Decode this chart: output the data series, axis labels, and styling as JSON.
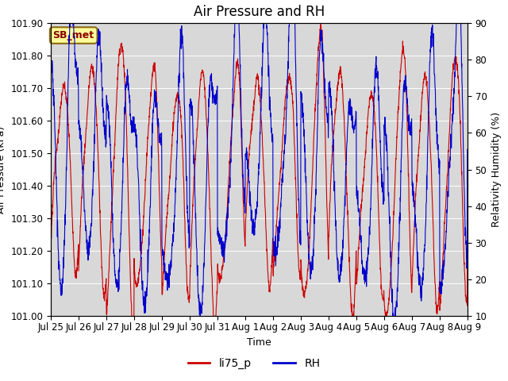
{
  "title": "Air Pressure and RH",
  "ylabel_left": "Air Pressure (kPa)",
  "ylabel_right": "Relativity Humidity (%)",
  "xlabel": "Time",
  "ylim_left": [
    101.0,
    101.9
  ],
  "ylim_right": [
    10,
    90
  ],
  "yticks_left": [
    101.0,
    101.1,
    101.2,
    101.3,
    101.4,
    101.5,
    101.6,
    101.7,
    101.8,
    101.9
  ],
  "yticks_right": [
    10,
    20,
    30,
    40,
    50,
    60,
    70,
    80,
    90
  ],
  "label_annotation": "SB_met",
  "legend_labels": [
    "li75_p",
    "RH"
  ],
  "line_colors": [
    "#cc0000",
    "#0000cc"
  ],
  "plot_bg_color": "#d8d8d8",
  "title_fontsize": 12,
  "axis_fontsize": 9,
  "tick_fontsize": 8.5
}
